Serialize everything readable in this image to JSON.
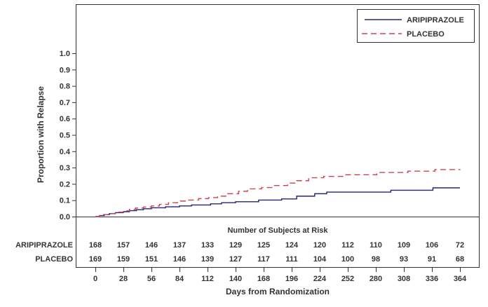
{
  "figure": {
    "background": "#ffffff",
    "text_color": "#333333",
    "axis_color": "#333333"
  },
  "chart_data": {
    "type": "line",
    "subtype": "kaplan-meier-step",
    "title": "",
    "xlabel": "Days from Randomization",
    "ylabel": "Proportion with Relapse",
    "xlim": [
      0,
      364
    ],
    "ylim": [
      0.0,
      1.0
    ],
    "x_ticks": [
      0,
      28,
      56,
      84,
      112,
      140,
      168,
      196,
      224,
      252,
      280,
      308,
      336,
      364
    ],
    "y_ticks": [
      0.0,
      0.1,
      0.2,
      0.3,
      0.4,
      0.5,
      0.6,
      0.7,
      0.8,
      0.9,
      1.0
    ],
    "grid": false,
    "legend_position": "top-right",
    "series": [
      {
        "name": "ARIPIPRAZOLE",
        "color": "#23237a",
        "line_style": "solid",
        "points": [
          [
            0,
            0
          ],
          [
            4,
            0.006
          ],
          [
            9,
            0.012
          ],
          [
            14,
            0.018
          ],
          [
            20,
            0.024
          ],
          [
            28,
            0.03
          ],
          [
            34,
            0.036
          ],
          [
            41,
            0.042
          ],
          [
            48,
            0.048
          ],
          [
            56,
            0.054
          ],
          [
            70,
            0.06
          ],
          [
            84,
            0.065
          ],
          [
            96,
            0.071
          ],
          [
            115,
            0.078
          ],
          [
            126,
            0.085
          ],
          [
            140,
            0.091
          ],
          [
            163,
            0.101
          ],
          [
            186,
            0.108
          ],
          [
            201,
            0.125
          ],
          [
            219,
            0.14
          ],
          [
            231,
            0.15
          ],
          [
            295,
            0.161
          ],
          [
            337,
            0.176
          ],
          [
            364,
            0.176
          ]
        ]
      },
      {
        "name": "PLACEBO",
        "color": "#cc4455",
        "line_style": "dashed",
        "points": [
          [
            0,
            0
          ],
          [
            4,
            0.006
          ],
          [
            8,
            0.012
          ],
          [
            13,
            0.019
          ],
          [
            20,
            0.027
          ],
          [
            28,
            0.035
          ],
          [
            34,
            0.044
          ],
          [
            40,
            0.052
          ],
          [
            48,
            0.058
          ],
          [
            56,
            0.065
          ],
          [
            64,
            0.075
          ],
          [
            73,
            0.085
          ],
          [
            82,
            0.095
          ],
          [
            92,
            0.101
          ],
          [
            103,
            0.11
          ],
          [
            113,
            0.116
          ],
          [
            122,
            0.125
          ],
          [
            132,
            0.14
          ],
          [
            143,
            0.155
          ],
          [
            152,
            0.17
          ],
          [
            166,
            0.178
          ],
          [
            178,
            0.19
          ],
          [
            192,
            0.205
          ],
          [
            201,
            0.22
          ],
          [
            213,
            0.238
          ],
          [
            228,
            0.246
          ],
          [
            250,
            0.256
          ],
          [
            281,
            0.27
          ],
          [
            312,
            0.278
          ],
          [
            339,
            0.288
          ],
          [
            364,
            0.29
          ]
        ]
      }
    ],
    "at_risk_table": {
      "title": "Number of Subjects at Risk",
      "days": [
        0,
        28,
        56,
        84,
        112,
        140,
        168,
        196,
        224,
        252,
        280,
        308,
        336,
        364
      ],
      "rows": [
        {
          "label": "ARIPIPRAZOLE",
          "counts": [
            168,
            157,
            146,
            137,
            133,
            129,
            125,
            124,
            120,
            112,
            110,
            109,
            106,
            72
          ]
        },
        {
          "label": "PLACEBO",
          "counts": [
            169,
            159,
            151,
            146,
            139,
            127,
            117,
            111,
            104,
            100,
            98,
            93,
            91,
            68
          ]
        }
      ]
    }
  }
}
